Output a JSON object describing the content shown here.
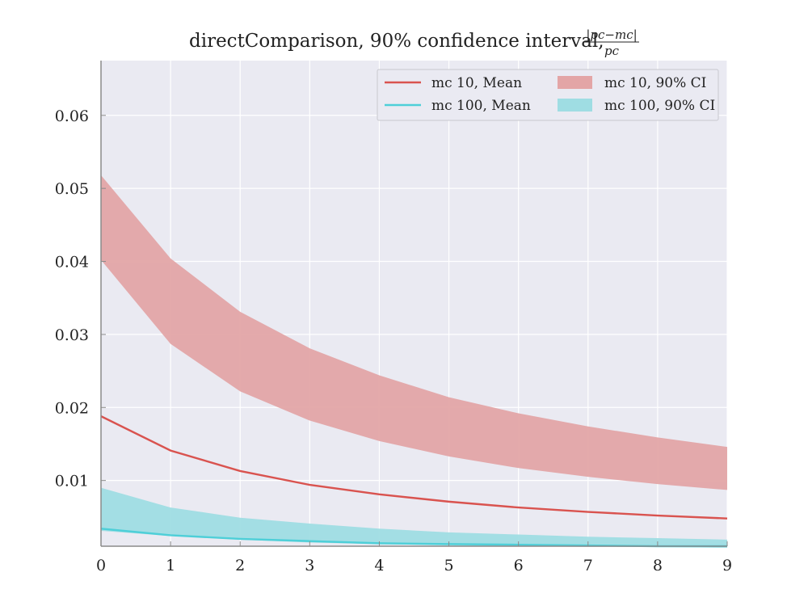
{
  "chart_data": {
    "type": "line",
    "title": "directComparison, 90% confidence interval,",
    "title_fraction": {
      "numerator": "|pc−mc|",
      "denominator": "pc"
    },
    "xlabel": "",
    "ylabel": "",
    "xlim": [
      0,
      9
    ],
    "ylim": [
      0.001,
      0.0675
    ],
    "x_ticks": [
      0,
      1,
      2,
      3,
      4,
      5,
      6,
      7,
      8,
      9
    ],
    "y_ticks": [
      0.01,
      0.02,
      0.03,
      0.04,
      0.05,
      0.06
    ],
    "y_tick_labels": [
      "0.01",
      "0.02",
      "0.03",
      "0.04",
      "0.05",
      "0.06"
    ],
    "grid": true,
    "legend_position": "top-right",
    "x": [
      0,
      1,
      2,
      3,
      4,
      5,
      6,
      7,
      8,
      9
    ],
    "series": [
      {
        "name": "mc 10, Mean",
        "kind": "line",
        "color": "#d9534f",
        "values": [
          0.0188,
          0.0141,
          0.0113,
          0.0094,
          0.0081,
          0.0071,
          0.0063,
          0.0057,
          0.0052,
          0.0048
        ]
      },
      {
        "name": "mc 100, Mean",
        "kind": "line",
        "color": "#4ecfd8",
        "values": [
          0.0034,
          0.0025,
          0.002,
          0.0017,
          0.0014,
          0.0013,
          0.0012,
          0.0011,
          0.001,
          0.001
        ]
      },
      {
        "name": "mc 10, 90% CI",
        "kind": "band",
        "color": "#e3a5a6",
        "lower": [
          0.0402,
          0.0287,
          0.0222,
          0.0182,
          0.0154,
          0.0133,
          0.0117,
          0.0105,
          0.0095,
          0.0087
        ],
        "upper": [
          0.0518,
          0.0404,
          0.0331,
          0.0281,
          0.0244,
          0.0214,
          0.0192,
          0.0174,
          0.0159,
          0.0146
        ]
      },
      {
        "name": "mc 100, 90% CI",
        "kind": "band",
        "color": "#9fdde3",
        "lower": [
          0.0031,
          0.0024,
          0.0019,
          0.0015,
          0.0013,
          0.0011,
          0.001,
          0.0009,
          0.0009,
          0.0008
        ],
        "upper": [
          0.009,
          0.0063,
          0.0049,
          0.0041,
          0.0034,
          0.0029,
          0.0026,
          0.0023,
          0.0021,
          0.0019
        ]
      }
    ],
    "legend": [
      {
        "label": "mc 10, Mean",
        "kind": "line",
        "color": "#d9534f"
      },
      {
        "label": "mc 10, 90% CI",
        "kind": "band",
        "color": "#e3a5a6"
      },
      {
        "label": "mc 100, Mean",
        "kind": "line",
        "color": "#4ecfd8"
      },
      {
        "label": "mc 100, 90% CI",
        "kind": "band",
        "color": "#9fdde3"
      }
    ],
    "plot_background": "#eaeaf2",
    "grid_color": "#ffffff"
  }
}
